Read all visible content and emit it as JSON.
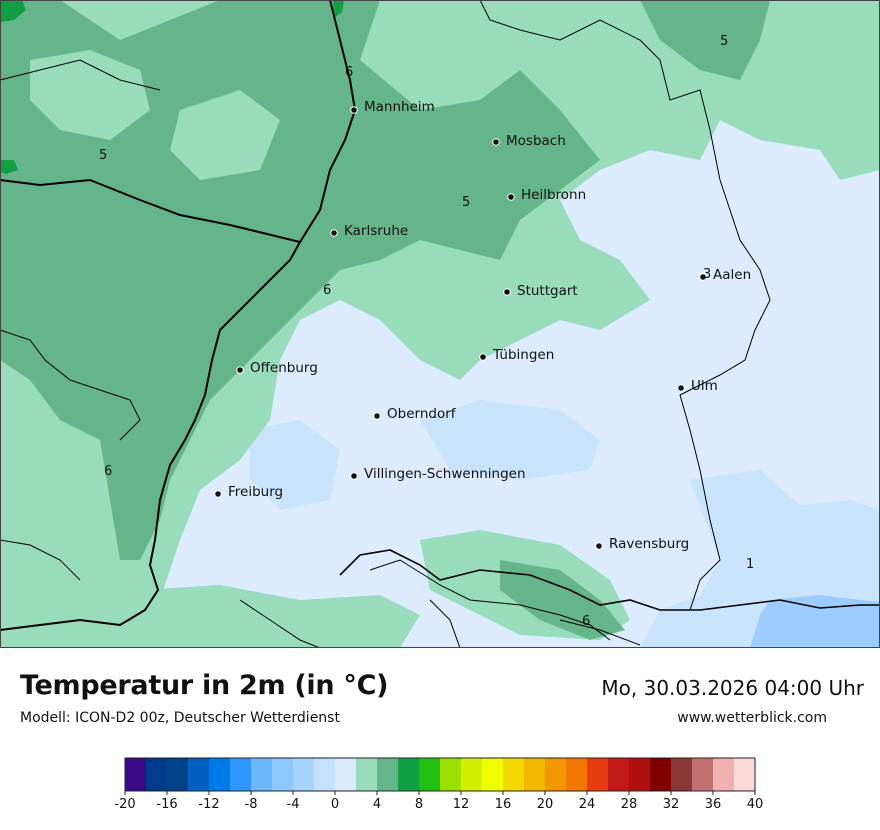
{
  "map": {
    "cities": [
      {
        "name": "Mannheim"
      },
      {
        "name": "Mosbach"
      },
      {
        "name": "Heilbronn"
      },
      {
        "name": "Karlsruhe"
      },
      {
        "name": "Aalen"
      },
      {
        "name": "Stuttgart"
      },
      {
        "name": "Tübingen"
      },
      {
        "name": "Offenburg"
      },
      {
        "name": "Ulm"
      },
      {
        "name": "Oberndorf"
      },
      {
        "name": "Villingen-Schwenningen"
      },
      {
        "name": "Freiburg"
      },
      {
        "name": "Ravensburg"
      }
    ],
    "isolines": [
      "5",
      "6",
      "5",
      "5",
      "6",
      "3",
      "6",
      "1",
      "6"
    ],
    "colors": {
      "t_0_2": "#c9e3fb",
      "t_2_4": "#ddebff",
      "t_4_6": "#98dcbc",
      "t_6_8": "#66b48a",
      "t_8_10": "#10a043",
      "borders": "#000000"
    }
  },
  "header": {
    "title": "Temperatur in 2m (in °C)",
    "subtitle": "Modell: ICON-D2 00z, Deutscher Wetterdienst",
    "datetime": "Mo, 30.03.2026 04:00 Uhr",
    "website": "www.wetterblick.com"
  },
  "legend": {
    "colors": [
      "#3a0a88",
      "#003a8a",
      "#00438a",
      "#005fbf",
      "#007ae8",
      "#2f98ff",
      "#6db7ff",
      "#8dc8ff",
      "#a8d4ff",
      "#c6e1ff",
      "#ddebff",
      "#98dcbc",
      "#66b48a",
      "#10a043",
      "#22c010",
      "#9be000",
      "#d1f000",
      "#f0ff00",
      "#f2d800",
      "#f2b800",
      "#f29700",
      "#f27700",
      "#e83c10",
      "#c41818",
      "#b01010",
      "#800000",
      "#8a3838",
      "#c47070",
      "#f0b0b0",
      "#fdd8d8"
    ],
    "ticks": [
      "-20",
      "-16",
      "-12",
      "-8",
      "-4",
      "0",
      "4",
      "8",
      "12",
      "16",
      "20",
      "24",
      "28",
      "32",
      "36",
      "40"
    ]
  }
}
